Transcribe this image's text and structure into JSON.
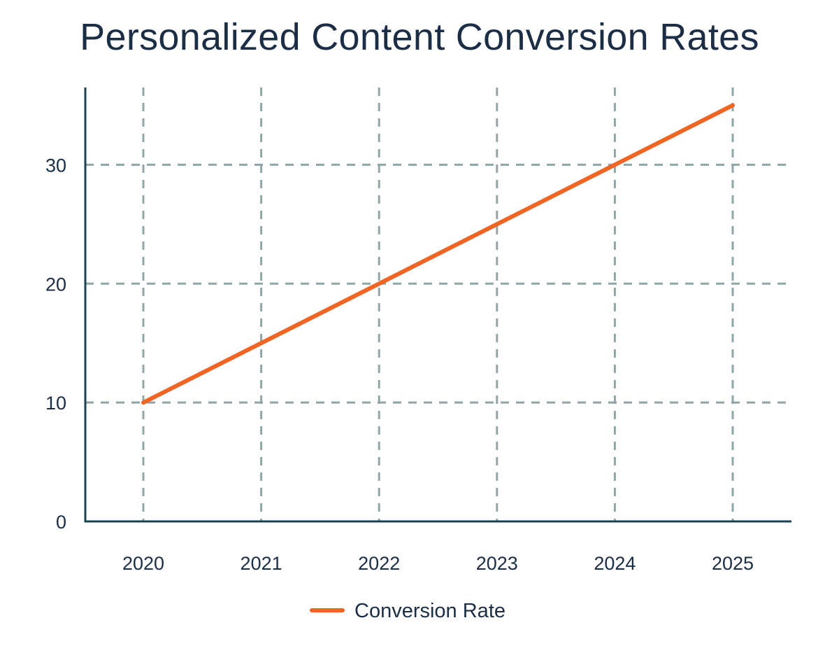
{
  "chart_data": {
    "type": "line",
    "title": "Personalized Content Conversion Rates",
    "xlabel": "",
    "ylabel": "",
    "categories": [
      "2020",
      "2021",
      "2022",
      "2023",
      "2024",
      "2025"
    ],
    "series": [
      {
        "name": "Conversion Rate",
        "values": [
          10,
          15,
          20,
          25,
          30,
          35
        ],
        "color": "#f06424"
      }
    ],
    "yticks": [
      0,
      10,
      20,
      30
    ],
    "ylim": [
      0,
      36.5
    ],
    "grid": true,
    "grid_style": "dashed",
    "legend_position": "bottom",
    "colors": {
      "axis": "#1d4350",
      "grid": "#8fa5a8",
      "text": "#1c2e45"
    }
  }
}
